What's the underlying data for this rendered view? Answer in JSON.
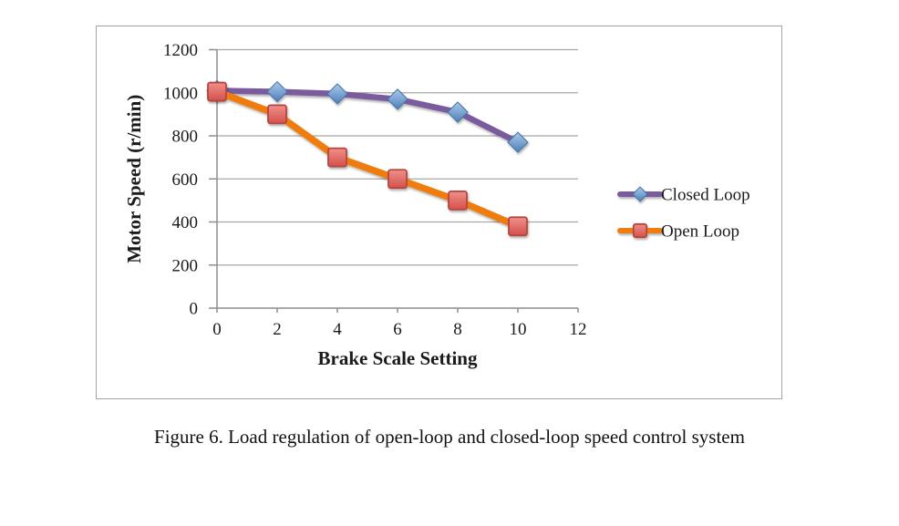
{
  "figure": {
    "caption": "Figure 6. Load regulation of open-loop and closed-loop speed control system"
  },
  "chart_data": {
    "type": "line",
    "title": "",
    "xlabel": "Brake Scale Setting",
    "ylabel": "Motor Speed (r/min)",
    "x": [
      0,
      2,
      4,
      6,
      8,
      10
    ],
    "series": [
      {
        "name": "Closed Loop",
        "values": [
          1010,
          1005,
          995,
          970,
          910,
          770
        ],
        "line_color": "#7a5c9e",
        "marker": "diamond",
        "marker_fill_top": "#a9cbec",
        "marker_fill_bottom": "#4e7fba",
        "marker_stroke": "#44719f"
      },
      {
        "name": "Open Loop",
        "values": [
          1005,
          900,
          700,
          600,
          500,
          380
        ],
        "line_color": "#ef7c0c",
        "marker": "square",
        "marker_fill_top": "#ef908a",
        "marker_fill_bottom": "#d4504c",
        "marker_stroke": "#b5443f"
      }
    ],
    "xlim": [
      0,
      12
    ],
    "ylim": [
      0,
      1200
    ],
    "x_ticks": [
      0,
      2,
      4,
      6,
      8,
      10,
      12
    ],
    "y_ticks": [
      0,
      200,
      400,
      600,
      800,
      1000,
      1200
    ],
    "grid": true,
    "legend_position": "right",
    "colors": {
      "grid": "#a8a8a8",
      "axis": "#8e8e8e",
      "text": "#1a1a1a",
      "plot_border": "#a3a3a3"
    }
  }
}
